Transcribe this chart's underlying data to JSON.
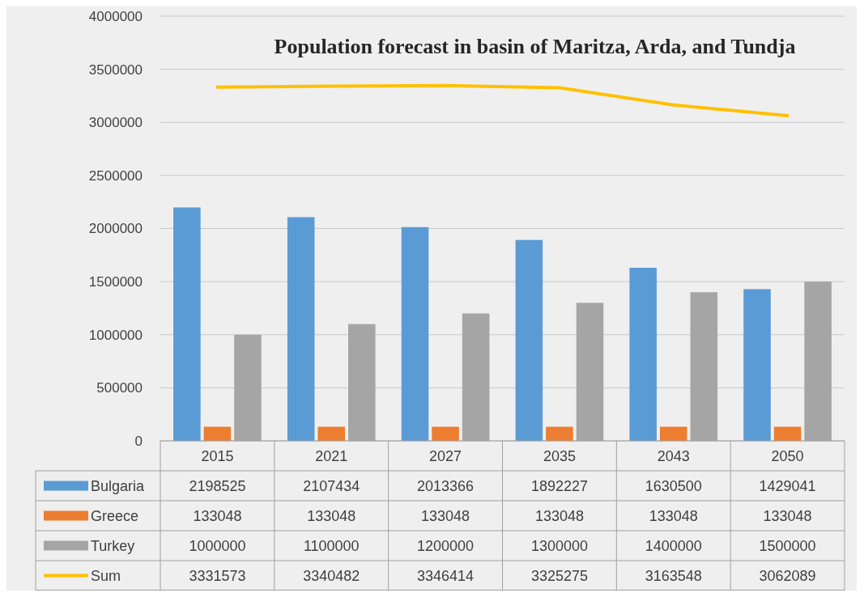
{
  "chart_data": {
    "type": "bar",
    "title": "Population forecast in basin of Maritza, Arda, and Tundja",
    "categories": [
      "2015",
      "2021",
      "2027",
      "2035",
      "2043",
      "2050"
    ],
    "series": [
      {
        "name": "Bulgaria",
        "color": "#5b9bd5",
        "values": [
          2198525,
          2107434,
          2013366,
          1892227,
          1630500,
          1429041
        ]
      },
      {
        "name": "Greece",
        "color": "#ed7d31",
        "values": [
          133048,
          133048,
          133048,
          133048,
          133048,
          133048
        ]
      },
      {
        "name": "Turkey",
        "color": "#a5a5a5",
        "values": [
          1000000,
          1100000,
          1200000,
          1300000,
          1400000,
          1500000
        ]
      },
      {
        "name": "Sum",
        "type": "line",
        "color": "#ffc000",
        "values": [
          3331573,
          3340482,
          3346414,
          3325275,
          3163548,
          3062089
        ]
      }
    ],
    "ylim": [
      0,
      4000000
    ],
    "yticks": [
      0,
      500000,
      1000000,
      1500000,
      2000000,
      2500000,
      3000000,
      3500000,
      4000000
    ],
    "grid": "y",
    "legend": "bottom",
    "data_labels": true,
    "marker": "none"
  }
}
